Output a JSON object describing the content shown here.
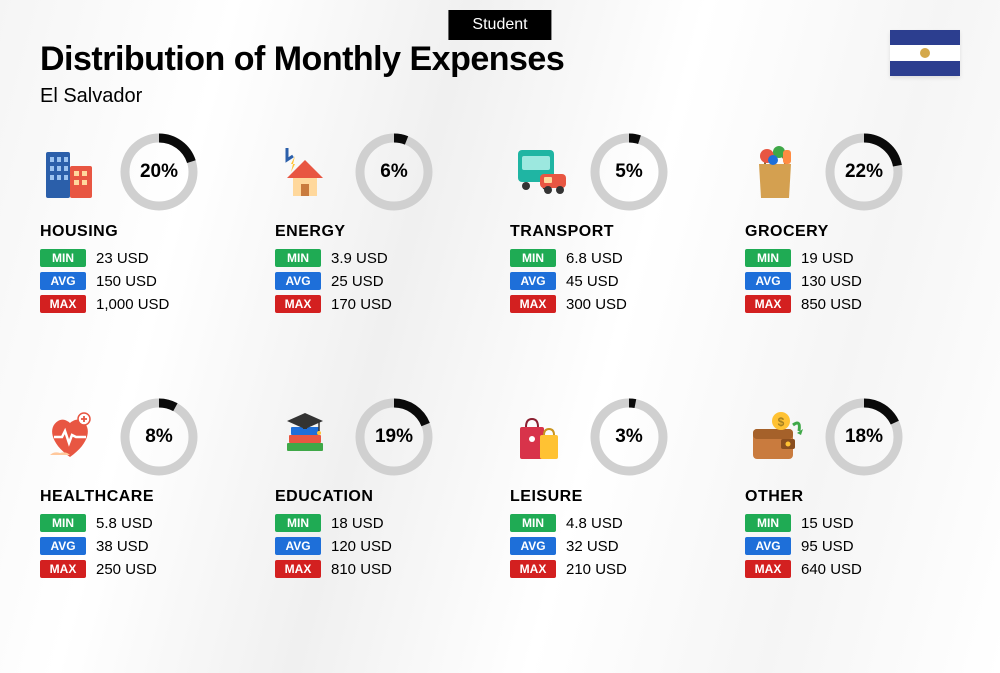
{
  "badge_label": "Student",
  "title": "Distribution of Monthly Expenses",
  "subtitle": "El Salvador",
  "flag": {
    "stripe_color": "#2c3e8f",
    "emblem_color": "#d4a84b"
  },
  "donut": {
    "bg_color": "#d0d0d0",
    "fg_color": "#0a0a0a",
    "stroke_width": 9,
    "radius": 34
  },
  "stat_labels": {
    "min": "MIN",
    "avg": "AVG",
    "max": "MAX"
  },
  "stat_colors": {
    "min": "#1fab54",
    "avg": "#1e6fd9",
    "max": "#d32020"
  },
  "categories": [
    {
      "name": "HOUSING",
      "percent": 20,
      "percent_label": "20%",
      "icon": "buildings",
      "min": "23 USD",
      "avg": "150 USD",
      "max": "1,000 USD"
    },
    {
      "name": "ENERGY",
      "percent": 6,
      "percent_label": "6%",
      "icon": "energy-house",
      "min": "3.9 USD",
      "avg": "25 USD",
      "max": "170 USD"
    },
    {
      "name": "TRANSPORT",
      "percent": 5,
      "percent_label": "5%",
      "icon": "transport",
      "min": "6.8 USD",
      "avg": "45 USD",
      "max": "300 USD"
    },
    {
      "name": "GROCERY",
      "percent": 22,
      "percent_label": "22%",
      "icon": "grocery-bag",
      "min": "19 USD",
      "avg": "130 USD",
      "max": "850 USD"
    },
    {
      "name": "HEALTHCARE",
      "percent": 8,
      "percent_label": "8%",
      "icon": "healthcare",
      "min": "5.8 USD",
      "avg": "38 USD",
      "max": "250 USD"
    },
    {
      "name": "EDUCATION",
      "percent": 19,
      "percent_label": "19%",
      "icon": "education",
      "min": "18 USD",
      "avg": "120 USD",
      "max": "810 USD"
    },
    {
      "name": "LEISURE",
      "percent": 3,
      "percent_label": "3%",
      "icon": "shopping-bags",
      "min": "4.8 USD",
      "avg": "32 USD",
      "max": "210 USD"
    },
    {
      "name": "OTHER",
      "percent": 18,
      "percent_label": "18%",
      "icon": "wallet",
      "min": "15 USD",
      "avg": "95 USD",
      "max": "640 USD"
    }
  ]
}
